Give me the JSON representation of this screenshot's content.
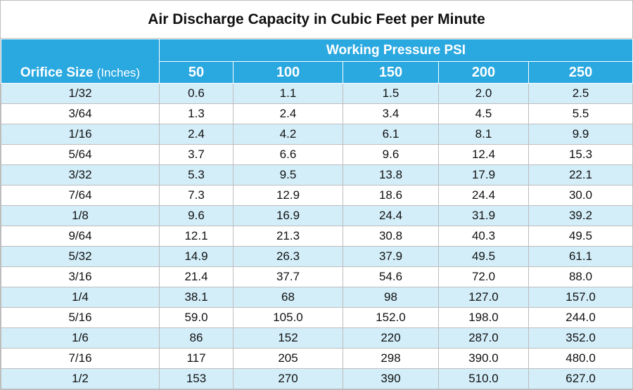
{
  "chart_data": {
    "type": "table",
    "title": "Air Discharge Capacity in Cubic Feet per Minute",
    "row_header": "Orifice Size",
    "row_header_unit": "(Inches)",
    "column_group": "Working Pressure PSI",
    "columns": [
      "50",
      "100",
      "150",
      "200",
      "250"
    ],
    "rows": [
      {
        "size": "1/32",
        "values": [
          "0.6",
          "1.1",
          "1.5",
          "2.0",
          "2.5"
        ]
      },
      {
        "size": "3/64",
        "values": [
          "1.3",
          "2.4",
          "3.4",
          "4.5",
          "5.5"
        ]
      },
      {
        "size": "1/16",
        "values": [
          "2.4",
          "4.2",
          "6.1",
          "8.1",
          "9.9"
        ]
      },
      {
        "size": "5/64",
        "values": [
          "3.7",
          "6.6",
          "9.6",
          "12.4",
          "15.3"
        ]
      },
      {
        "size": "3/32",
        "values": [
          "5.3",
          "9.5",
          "13.8",
          "17.9",
          "22.1"
        ]
      },
      {
        "size": "7/64",
        "values": [
          "7.3",
          "12.9",
          "18.6",
          "24.4",
          "30.0"
        ]
      },
      {
        "size": "1/8",
        "values": [
          "9.6",
          "16.9",
          "24.4",
          "31.9",
          "39.2"
        ]
      },
      {
        "size": "9/64",
        "values": [
          "12.1",
          "21.3",
          "30.8",
          "40.3",
          "49.5"
        ]
      },
      {
        "size": "5/32",
        "values": [
          "14.9",
          "26.3",
          "37.9",
          "49.5",
          "61.1"
        ]
      },
      {
        "size": "3/16",
        "values": [
          "21.4",
          "37.7",
          "54.6",
          "72.0",
          "88.0"
        ]
      },
      {
        "size": "1/4",
        "values": [
          "38.1",
          "68",
          "98",
          "127.0",
          "157.0"
        ]
      },
      {
        "size": "5/16",
        "values": [
          "59.0",
          "105.0",
          "152.0",
          "198.0",
          "244.0"
        ]
      },
      {
        "size": "1/6",
        "values": [
          "86",
          "152",
          "220",
          "287.0",
          "352.0"
        ]
      },
      {
        "size": "7/16",
        "values": [
          "117",
          "205",
          "298",
          "390.0",
          "480.0"
        ]
      },
      {
        "size": "1/2",
        "values": [
          "153",
          "270",
          "390",
          "510.0",
          "627.0"
        ]
      }
    ]
  },
  "colors": {
    "header_bg": "#2aa8e0",
    "header_text": "#ffffff",
    "row_shade": "#d3eef9",
    "row_plain": "#ffffff",
    "grid": "#bdbdbd"
  }
}
